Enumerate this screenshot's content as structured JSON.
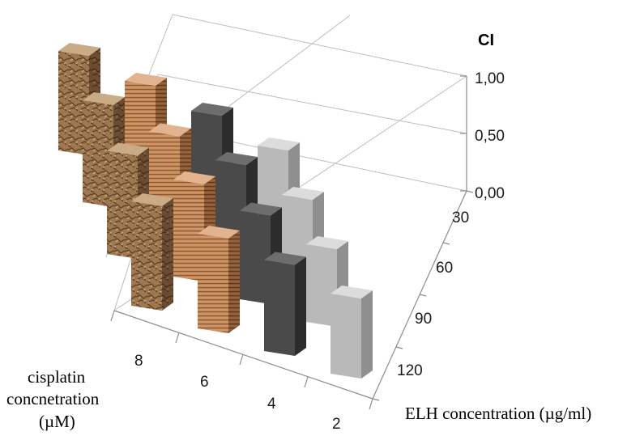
{
  "chart_data": {
    "type": "bar3d",
    "title": "",
    "z_axis": {
      "label": "CI",
      "ticks": [
        "1,00",
        "0,50",
        "0,00"
      ],
      "range": [
        0,
        1
      ]
    },
    "x_axis": {
      "label_lines": [
        "cisplatin",
        "concnetration",
        "(µM)"
      ],
      "categories": [
        "8",
        "6",
        "4",
        "2"
      ]
    },
    "y_axis": {
      "label": "ELH concentration (µg/ml)",
      "categories": [
        "30",
        "60",
        "90",
        "120"
      ]
    },
    "series": [
      {
        "x": "8",
        "values": [
          0.82,
          0.84,
          0.85,
          0.86
        ],
        "colors": {
          "front": "#a07a55",
          "side": "#6e4f33",
          "top": "#c9ab86"
        }
      },
      {
        "x": "6",
        "values": [
          0.76,
          0.77,
          0.8,
          0.78
        ],
        "colors": {
          "front": "#c4875a",
          "side": "#8c5a35",
          "top": "#e1b48f"
        }
      },
      {
        "x": "4",
        "values": [
          0.7,
          0.72,
          0.73,
          0.75
        ],
        "colors": {
          "front": "#4a4a4a",
          "side": "#2c2c2c",
          "top": "#6d6d6d"
        }
      },
      {
        "x": "2",
        "values": [
          0.6,
          0.62,
          0.64,
          0.66
        ],
        "colors": {
          "front": "#b9b9b9",
          "side": "#8f8f8f",
          "top": "#dcdcdc"
        }
      }
    ]
  }
}
